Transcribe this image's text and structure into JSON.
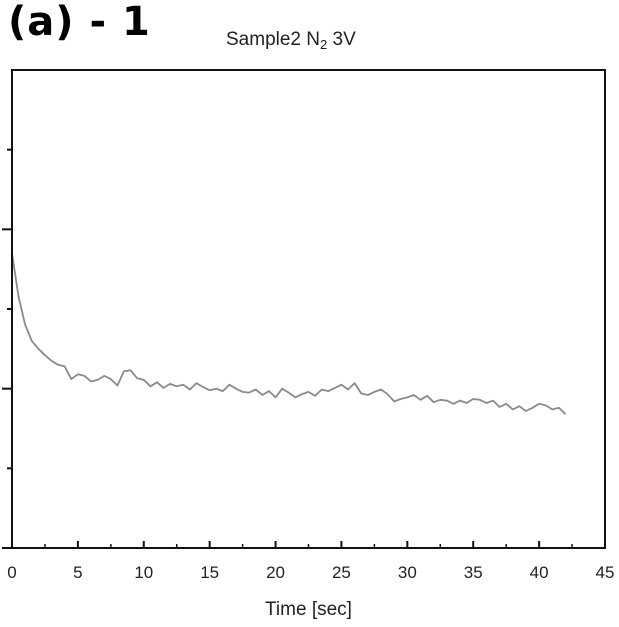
{
  "panel_label": "(a) - 1",
  "chart_data": {
    "type": "line",
    "title_main": "Sample2 N",
    "title_sub": "2",
    "title_suffix": " 3V",
    "xlabel": "Time [sec]",
    "ylabel": "",
    "xlim": [
      0,
      45
    ],
    "xticks": [
      0,
      5,
      10,
      15,
      20,
      25,
      30,
      35,
      40,
      45
    ],
    "xtick_labels": [
      "0",
      "5",
      "10",
      "15",
      "20",
      "25",
      "30",
      "35",
      "40",
      "45"
    ],
    "ylim": [
      0,
      6
    ],
    "ymajor_ticks": [
      0,
      2,
      4
    ],
    "yminor_ticks": [
      1,
      3,
      5
    ],
    "grid": false,
    "series": [
      {
        "color": "#8a8a8a",
        "x": [
          0,
          0.5,
          1,
          1.5,
          2,
          2.5,
          3,
          3.5,
          4,
          4.5,
          5,
          5.5,
          6,
          6.5,
          7,
          7.5,
          8,
          8.5,
          9,
          9.5,
          10,
          10.5,
          11,
          11.5,
          12,
          12.5,
          13,
          13.5,
          14,
          14.5,
          15,
          15.5,
          16,
          16.5,
          17,
          17.5,
          18,
          18.5,
          19,
          19.5,
          20,
          20.5,
          21,
          21.5,
          22,
          22.5,
          23,
          23.5,
          24,
          24.5,
          25,
          25.5,
          26,
          26.5,
          27,
          27.5,
          28,
          28.5,
          29,
          29.5,
          30,
          30.5,
          31,
          31.5,
          32,
          32.5,
          33,
          33.5,
          34,
          34.5,
          35,
          35.5,
          36,
          36.5,
          37,
          37.5,
          38,
          38.5,
          39,
          39.5,
          40,
          40.5,
          41,
          41.5,
          42
        ],
        "y": [
          3.7,
          3.15,
          2.8,
          2.6,
          2.5,
          2.42,
          2.35,
          2.3,
          2.28,
          2.12,
          2.18,
          2.16,
          2.09,
          2.11,
          2.16,
          2.12,
          2.04,
          2.22,
          2.23,
          2.13,
          2.11,
          2.03,
          2.08,
          2.01,
          2.06,
          2.03,
          2.05,
          1.99,
          2.07,
          2.02,
          1.98,
          2.0,
          1.97,
          2.05,
          2.0,
          1.96,
          1.95,
          1.99,
          1.92,
          1.97,
          1.89,
          2.0,
          1.95,
          1.89,
          1.93,
          1.96,
          1.91,
          1.99,
          1.97,
          2.01,
          2.05,
          1.99,
          2.07,
          1.94,
          1.92,
          1.96,
          1.99,
          1.93,
          1.84,
          1.87,
          1.89,
          1.92,
          1.86,
          1.91,
          1.83,
          1.86,
          1.85,
          1.81,
          1.85,
          1.82,
          1.87,
          1.86,
          1.82,
          1.85,
          1.77,
          1.81,
          1.74,
          1.78,
          1.72,
          1.76,
          1.81,
          1.79,
          1.74,
          1.76,
          1.68
        ]
      }
    ]
  }
}
